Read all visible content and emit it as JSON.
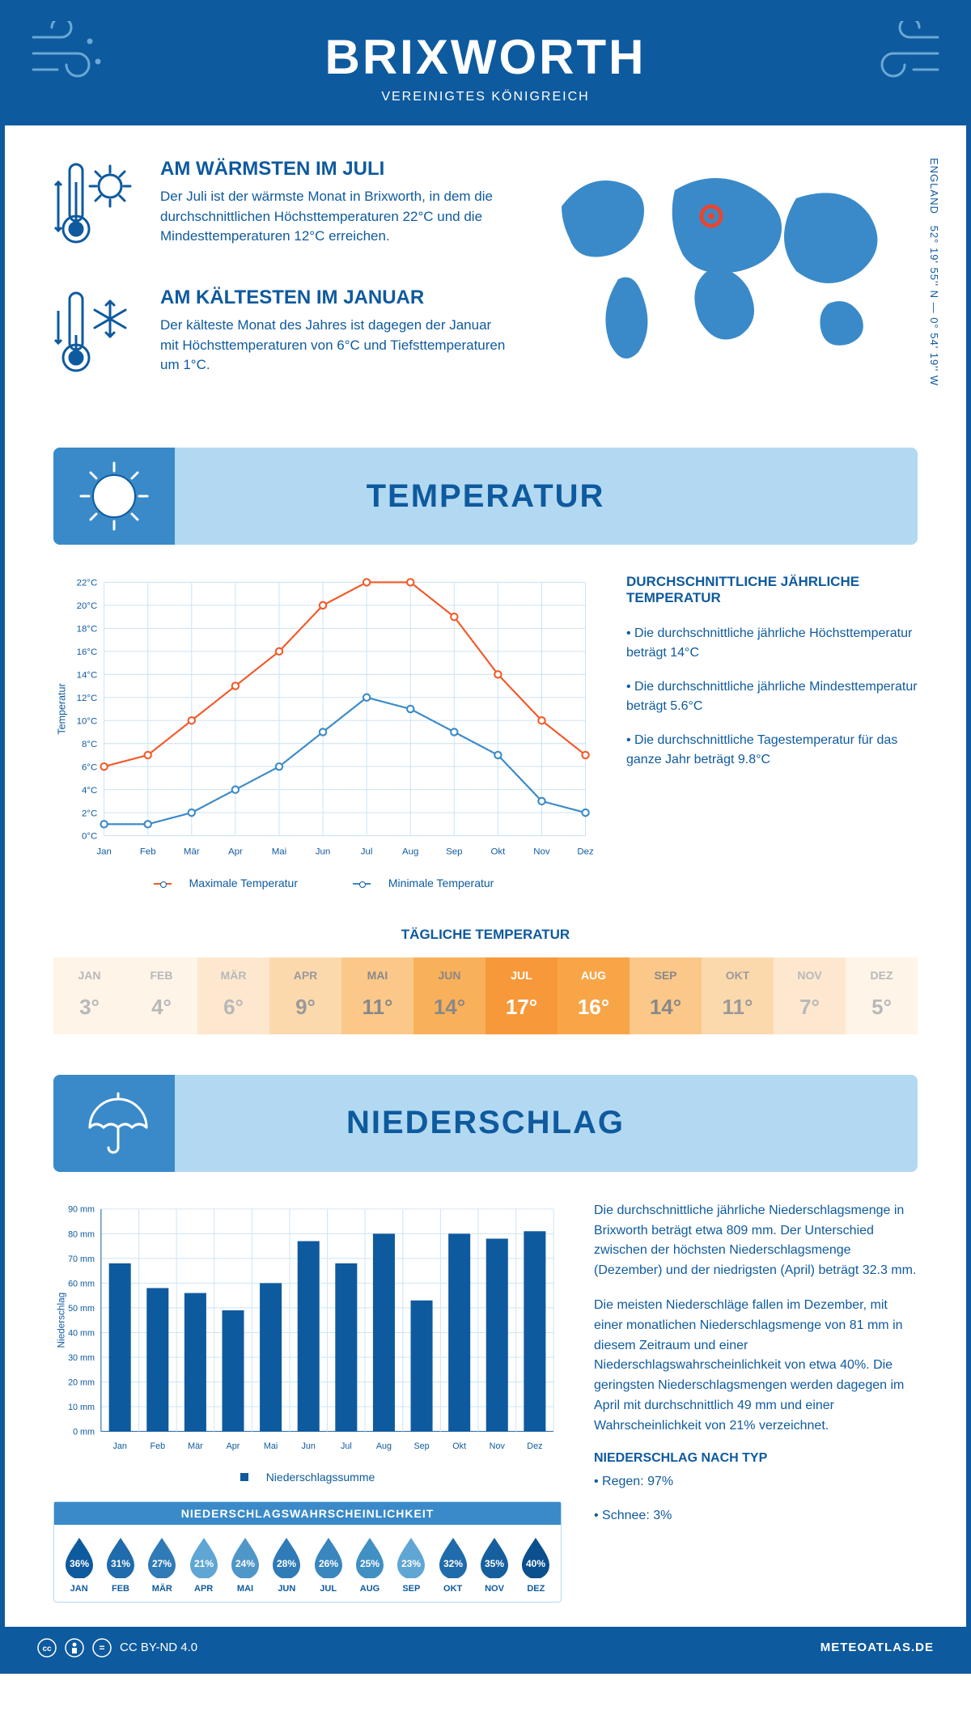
{
  "header": {
    "city": "BRIXWORTH",
    "country": "VEREINIGTES KÖNIGREICH"
  },
  "coords": {
    "lat": "52° 19' 55'' N",
    "lon": "0° 54' 19'' W",
    "region": "ENGLAND"
  },
  "summary": {
    "warm": {
      "title": "AM WÄRMSTEN IM JULI",
      "text": "Der Juli ist der wärmste Monat in Brixworth, in dem die durchschnittlichen Höchsttemperaturen 22°C und die Mindesttemperaturen 12°C erreichen."
    },
    "cold": {
      "title": "AM KÄLTESTEN IM JANUAR",
      "text": "Der kälteste Monat des Jahres ist dagegen der Januar mit Höchsttemperaturen von 6°C und Tiefsttemperaturen um 1°C."
    }
  },
  "sections": {
    "temperature": "TEMPERATUR",
    "precipitation": "NIEDERSCHLAG"
  },
  "months": [
    "Jan",
    "Feb",
    "Mär",
    "Apr",
    "Mai",
    "Jun",
    "Jul",
    "Aug",
    "Sep",
    "Okt",
    "Nov",
    "Dez"
  ],
  "months_upper": [
    "JAN",
    "FEB",
    "MÄR",
    "APR",
    "MAI",
    "JUN",
    "JUL",
    "AUG",
    "SEP",
    "OKT",
    "NOV",
    "DEZ"
  ],
  "temp_chart": {
    "type": "line",
    "ylabel": "Temperatur",
    "ylim": [
      0,
      22
    ],
    "ytick_step": 2,
    "max_series": {
      "label": "Maximale Temperatur",
      "color": "#f15a29",
      "values": [
        6,
        7,
        10,
        13,
        16,
        20,
        22,
        22,
        19,
        14,
        10,
        7
      ]
    },
    "min_series": {
      "label": "Minimale Temperatur",
      "color": "#3a8ac9",
      "values": [
        1,
        1,
        2,
        4,
        6,
        9,
        12,
        11,
        9,
        7,
        3,
        2
      ]
    },
    "background": "#ffffff",
    "grid_color": "#cde4f5",
    "line_width": 2,
    "marker_size": 4
  },
  "temp_side": {
    "title": "DURCHSCHNITTLICHE JÄHRLICHE TEMPERATUR",
    "b1": "• Die durchschnittliche jährliche Höchsttemperatur beträgt 14°C",
    "b2": "• Die durchschnittliche jährliche Mindesttemperatur beträgt 5.6°C",
    "b3": "• Die durchschnittliche Tagestemperatur für das ganze Jahr beträgt 9.8°C"
  },
  "daily": {
    "title": "TÄGLICHE TEMPERATUR",
    "values": [
      3,
      4,
      6,
      9,
      11,
      14,
      17,
      16,
      14,
      11,
      7,
      5
    ],
    "bg_colors": [
      "#fef4e8",
      "#fef4e8",
      "#fde8cf",
      "#fcd9ad",
      "#fbc88a",
      "#f9b05a",
      "#f7993a",
      "#f8a548",
      "#fbc88a",
      "#fcd9ad",
      "#fde8cf",
      "#fef4e8"
    ],
    "text_colors": [
      "#b8b8b8",
      "#b8b8b8",
      "#b8b8b8",
      "#9a9a9a",
      "#888888",
      "#888888",
      "#ffffff",
      "#ffffff",
      "#888888",
      "#9a9a9a",
      "#b8b8b8",
      "#b8b8b8"
    ]
  },
  "precip_chart": {
    "type": "bar",
    "ylabel": "Niederschlag",
    "ylim": [
      0,
      90
    ],
    "ytick_step": 10,
    "unit": "mm",
    "values": [
      68,
      58,
      56,
      49,
      60,
      77,
      68,
      80,
      53,
      80,
      78,
      81
    ],
    "bar_color": "#0e5a9e",
    "bar_width": 0.58,
    "grid_color": "#cde4f5",
    "legend": "Niederschlagssumme"
  },
  "precip_text": {
    "p1": "Die durchschnittliche jährliche Niederschlagsmenge in Brixworth beträgt etwa 809 mm. Der Unterschied zwischen der höchsten Niederschlagsmenge (Dezember) und der niedrigsten (April) beträgt 32.3 mm.",
    "p2": "Die meisten Niederschläge fallen im Dezember, mit einer monatlichen Niederschlagsmenge von 81 mm in diesem Zeitraum und einer Niederschlagswahrscheinlichkeit von etwa 40%. Die geringsten Niederschlagsmengen werden dagegen im April mit durchschnittlich 49 mm und einer Wahrscheinlichkeit von 21% verzeichnet.",
    "type_title": "NIEDERSCHLAG NACH TYP",
    "type1": "• Regen: 97%",
    "type2": "• Schnee: 3%"
  },
  "prob": {
    "title": "NIEDERSCHLAGSWAHRSCHEINLICHKEIT",
    "values": [
      36,
      31,
      27,
      21,
      24,
      28,
      26,
      25,
      23,
      32,
      35,
      40
    ],
    "colors": [
      "#0e5a9e",
      "#1f6bab",
      "#2f7bb8",
      "#5fa6d4",
      "#4f96c9",
      "#2f7bb8",
      "#3a86bf",
      "#4090c4",
      "#5fa6d4",
      "#1f6bab",
      "#155f9f",
      "#0a4f8e"
    ]
  },
  "footer": {
    "license": "CC BY-ND 4.0",
    "site": "METEOATLAS.DE"
  }
}
